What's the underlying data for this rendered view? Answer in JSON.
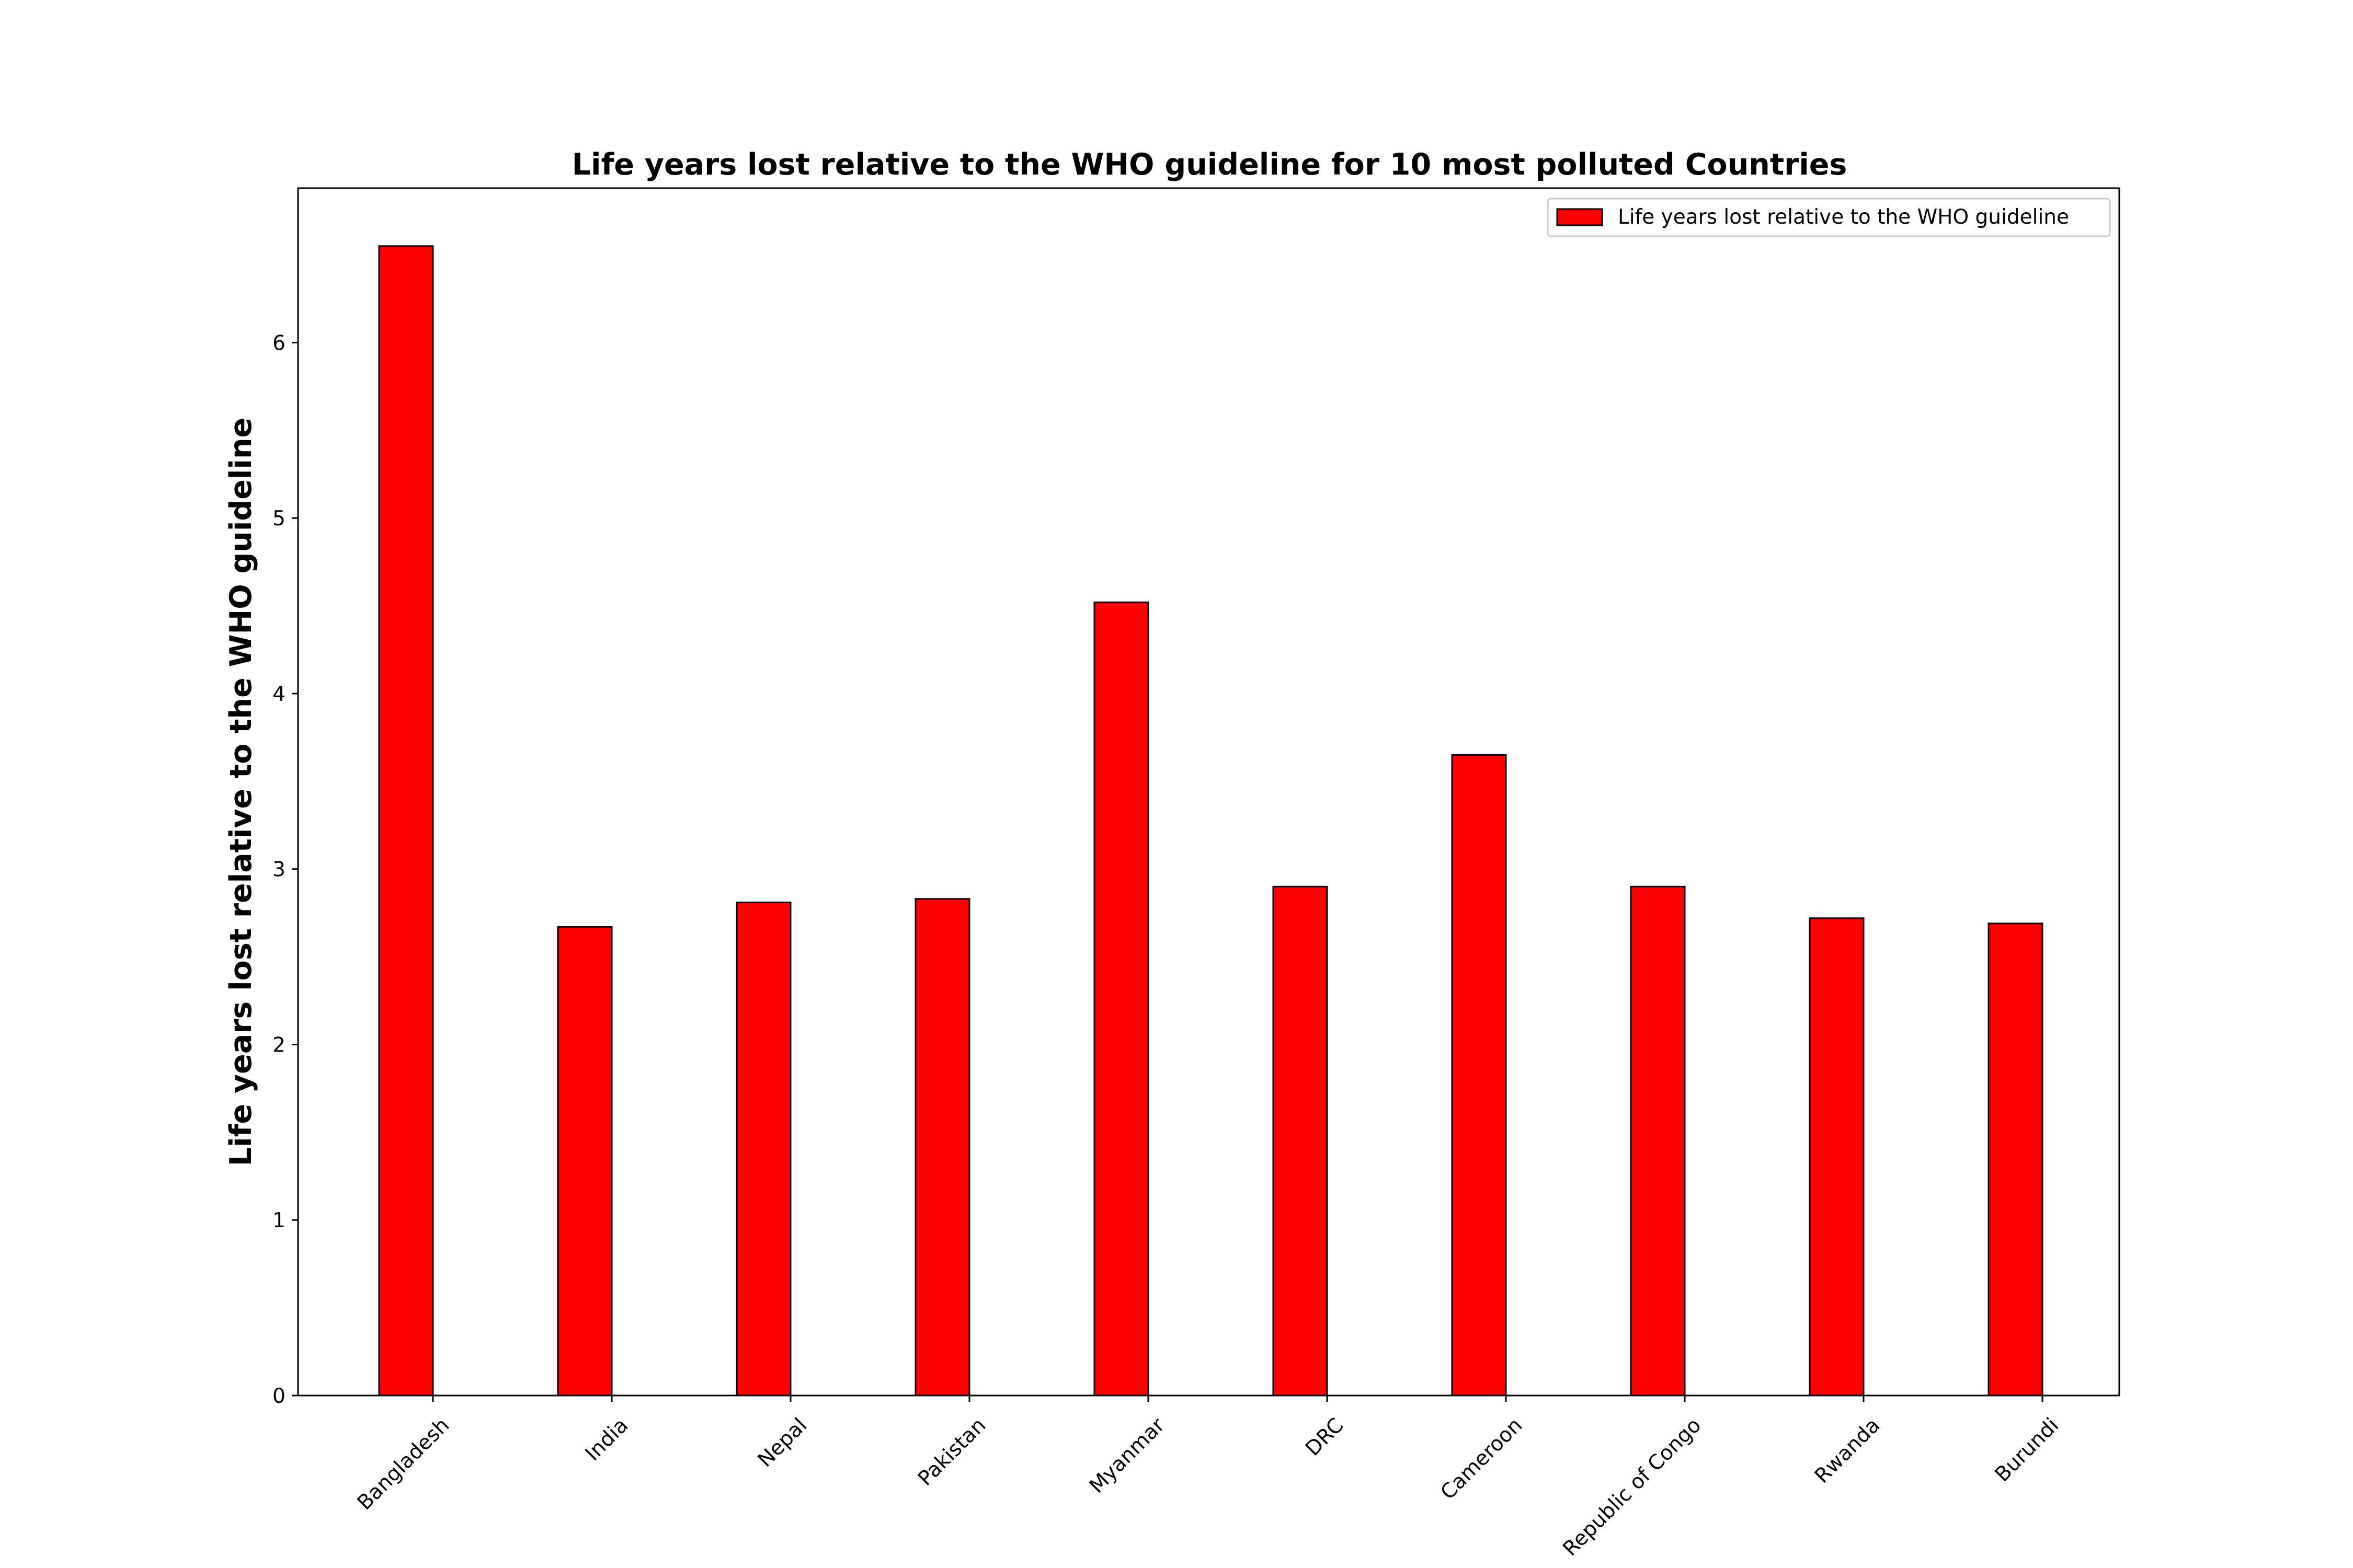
{
  "chart_data": {
    "type": "bar",
    "title": "Life years lost relative to the WHO guideline for 10 most polluted Countries",
    "xlabel": "",
    "ylabel": "Life years lost relative to the WHO guideline",
    "categories": [
      "Bangladesh",
      "India",
      "Nepal",
      "Pakistan",
      "Myanmar",
      "DRC",
      "Cameroon",
      "Republic of Congo",
      "Rwanda",
      "Burundi"
    ],
    "series": [
      {
        "name": "Life years lost relative to the WHO guideline",
        "color": "#ff0000",
        "values": [
          6.55,
          2.67,
          2.81,
          2.83,
          4.52,
          2.9,
          3.65,
          2.9,
          2.72,
          2.69
        ]
      }
    ],
    "ylim": [
      0,
      6.88
    ],
    "yticks": [
      0,
      1,
      2,
      3,
      4,
      5,
      6
    ],
    "grid": false,
    "legend_position": "top-right"
  }
}
